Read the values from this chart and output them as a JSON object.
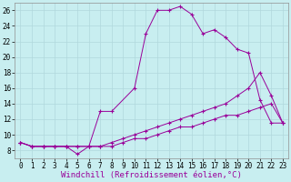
{
  "xlabel": "Windchill (Refroidissement éolien,°C)",
  "bg_color": "#c8eef0",
  "line_color": "#990099",
  "xlim": [
    -0.5,
    23.5
  ],
  "ylim": [
    7,
    27
  ],
  "xticks": [
    0,
    1,
    2,
    3,
    4,
    5,
    6,
    7,
    8,
    9,
    10,
    11,
    12,
    13,
    14,
    15,
    16,
    17,
    18,
    19,
    20,
    21,
    22,
    23
  ],
  "yticks": [
    8,
    10,
    12,
    14,
    16,
    18,
    20,
    22,
    24,
    26
  ],
  "line1_x": [
    0,
    1,
    2,
    3,
    4,
    5,
    6,
    7,
    8,
    10,
    11,
    12,
    13,
    14,
    15,
    16,
    17,
    18,
    19,
    20,
    21,
    22,
    23
  ],
  "line1_y": [
    9,
    8.5,
    8.5,
    8.5,
    8.5,
    7.5,
    8.5,
    13,
    13,
    16,
    23,
    26,
    26,
    26.5,
    25.5,
    23,
    23.5,
    22.5,
    21,
    20.5,
    14.5,
    11.5,
    11.5
  ],
  "line2_x": [
    0,
    1,
    2,
    3,
    4,
    5,
    6,
    7,
    8,
    9,
    10,
    11,
    12,
    13,
    14,
    15,
    16,
    17,
    18,
    19,
    20,
    21,
    22,
    23
  ],
  "line2_y": [
    9,
    8.5,
    8.5,
    8.5,
    8.5,
    8.5,
    8.5,
    8.5,
    9,
    9.5,
    10,
    10.5,
    11,
    11.5,
    12,
    12.5,
    13,
    13.5,
    14,
    15,
    16,
    18,
    15,
    11.5
  ],
  "line3_x": [
    0,
    1,
    2,
    3,
    4,
    5,
    6,
    7,
    8,
    9,
    10,
    11,
    12,
    13,
    14,
    15,
    16,
    17,
    18,
    19,
    20,
    21,
    22,
    23
  ],
  "line3_y": [
    9,
    8.5,
    8.5,
    8.5,
    8.5,
    8.5,
    8.5,
    8.5,
    8.5,
    9,
    9.5,
    9.5,
    10,
    10.5,
    11,
    11,
    11.5,
    12,
    12.5,
    12.5,
    13,
    13.5,
    14,
    11.5
  ],
  "grid_color": "#b0d8dc",
  "xlabel_fontsize": 6.5,
  "tick_fontsize": 5.5,
  "lw": 0.7,
  "ms": 3.0
}
